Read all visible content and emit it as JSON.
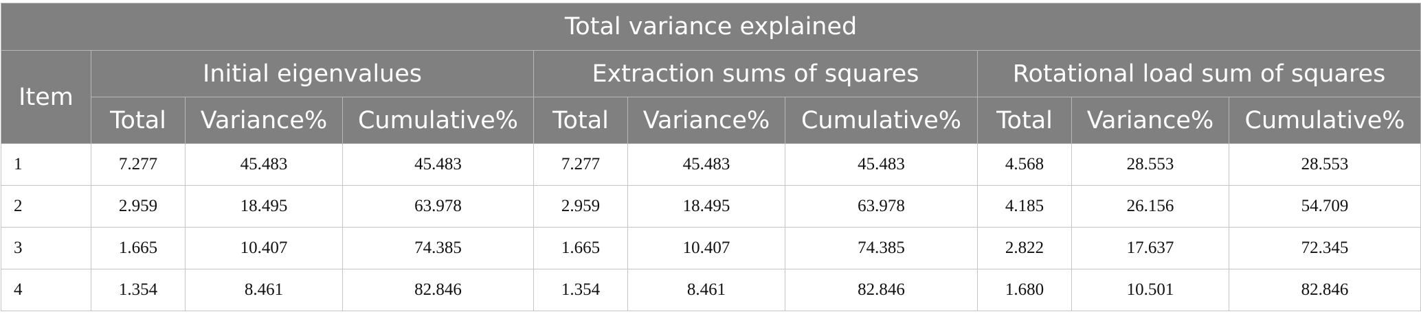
{
  "table": {
    "title": "Total variance explained",
    "row_header": "Item",
    "groups": [
      "Initial eigenvalues",
      "Extraction sums of squares",
      "Rotational load sum of squares"
    ],
    "subheaders": [
      "Total",
      "Variance%",
      "Cumulative%",
      "Total",
      "Variance%",
      "Cumulative%",
      "Total",
      "Variance%",
      "Cumulative%"
    ],
    "rows": [
      [
        "1",
        "7.277",
        "45.483",
        "45.483",
        "7.277",
        "45.483",
        "45.483",
        "4.568",
        "28.553",
        "28.553"
      ],
      [
        "2",
        "2.959",
        "18.495",
        "63.978",
        "2.959",
        "18.495",
        "63.978",
        "4.185",
        "26.156",
        "54.709"
      ],
      [
        "3",
        "1.665",
        "10.407",
        "74.385",
        "1.665",
        "10.407",
        "74.385",
        "2.822",
        "17.637",
        "72.345"
      ],
      [
        "4",
        "1.354",
        "8.461",
        "82.846",
        "1.354",
        "8.461",
        "82.846",
        "1.680",
        "10.501",
        "82.846"
      ]
    ]
  }
}
